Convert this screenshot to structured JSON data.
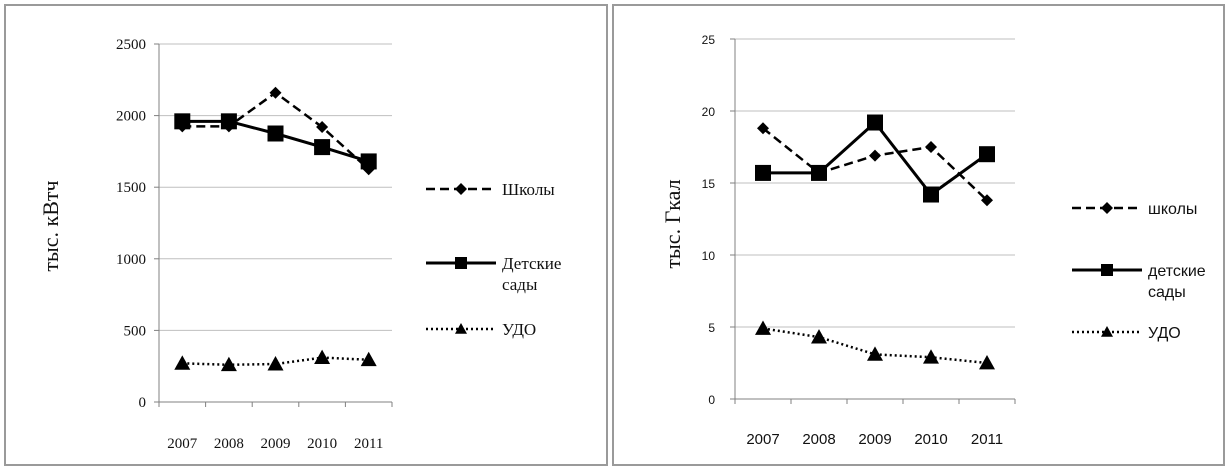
{
  "chart_data": [
    {
      "type": "line",
      "ylabel": "тыс. кВтч",
      "categories": [
        "2007",
        "2008",
        "2009",
        "2010",
        "2011"
      ],
      "ylim": [
        0,
        2500
      ],
      "yticks": [
        0,
        500,
        1000,
        1500,
        2000,
        2500
      ],
      "grid": true,
      "legend": "right",
      "series": [
        {
          "name": "Школы",
          "style": "dashed",
          "marker": "diamond",
          "values": [
            1925,
            1925,
            2160,
            1920,
            1625
          ]
        },
        {
          "name": "Детские сады",
          "style": "solid",
          "marker": "square",
          "values": [
            1960,
            1960,
            1875,
            1780,
            1680
          ]
        },
        {
          "name": "УДО",
          "style": "dotted",
          "marker": "triangle",
          "values": [
            270,
            260,
            265,
            310,
            295
          ]
        }
      ],
      "line_color": "#000000",
      "grid_color": "#bfbfbf"
    },
    {
      "type": "line",
      "ylabel": "тыс. Гкал",
      "categories": [
        "2007",
        "2008",
        "2009",
        "2010",
        "2011"
      ],
      "ylim": [
        0,
        25
      ],
      "yticks": [
        0,
        5,
        10,
        15,
        20,
        25
      ],
      "grid": true,
      "legend": "right",
      "series": [
        {
          "name": "школы",
          "style": "dashed",
          "marker": "diamond",
          "values": [
            18.8,
            15.7,
            16.9,
            17.5,
            13.8
          ]
        },
        {
          "name": "детские сады",
          "style": "solid",
          "marker": "square",
          "values": [
            15.7,
            15.7,
            19.2,
            14.2,
            17.0
          ]
        },
        {
          "name": "УДО",
          "style": "dotted",
          "marker": "triangle",
          "values": [
            4.9,
            4.3,
            3.1,
            2.9,
            2.5
          ]
        }
      ],
      "line_color": "#000000",
      "grid_color": "#bfbfbf"
    }
  ]
}
